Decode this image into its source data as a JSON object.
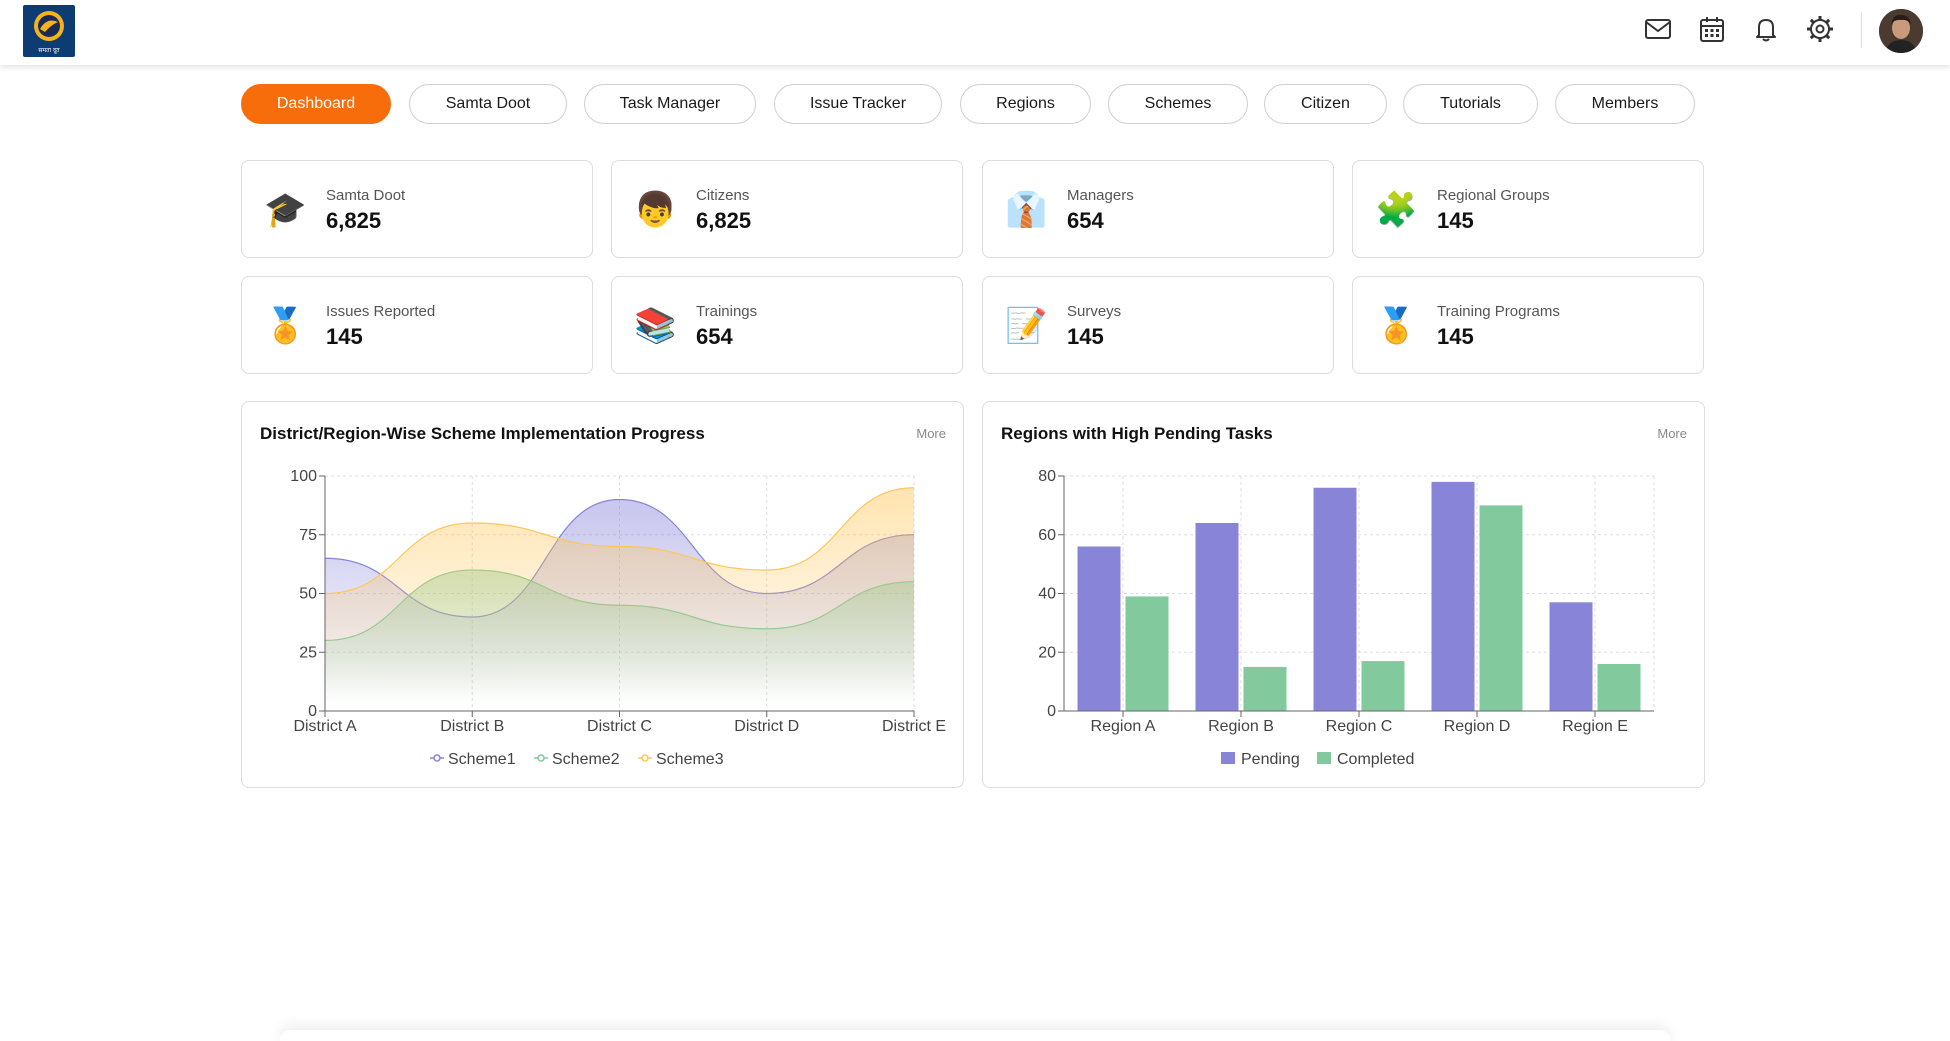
{
  "header": {
    "logo_text": "समता दूत",
    "icons": [
      "mail-icon",
      "calendar-icon",
      "bell-icon",
      "settings-icon"
    ]
  },
  "nav": {
    "tabs": [
      {
        "label": "Dashboard",
        "active": true
      },
      {
        "label": "Samta Doot",
        "active": false
      },
      {
        "label": "Task Manager",
        "active": false
      },
      {
        "label": "Issue Tracker",
        "active": false
      },
      {
        "label": "Regions",
        "active": false
      },
      {
        "label": "Schemes",
        "active": false
      },
      {
        "label": "Citizen",
        "active": false
      },
      {
        "label": "Tutorials",
        "active": false
      },
      {
        "label": "Members",
        "active": false
      }
    ],
    "active_color": "#f86d0b"
  },
  "stats": [
    {
      "icon": "graduation-cap-icon",
      "glyph": "🎓",
      "label": "Samta Doot",
      "value": "6,825"
    },
    {
      "icon": "citizen-face-icon",
      "glyph": "👦",
      "label": "Citizens",
      "value": "6,825"
    },
    {
      "icon": "manager-shirt-icon",
      "glyph": "👔",
      "label": "Managers",
      "value": "654"
    },
    {
      "icon": "puzzle-piece-icon",
      "glyph": "🧩",
      "label": "Regional Groups",
      "value": "145"
    },
    {
      "icon": "medal-icon",
      "glyph": "🏅",
      "label": "Issues Reported",
      "value": "145"
    },
    {
      "icon": "books-icon",
      "glyph": "📚",
      "label": "Trainings",
      "value": "654"
    },
    {
      "icon": "memo-icon",
      "glyph": "📝",
      "label": "Surveys",
      "value": "145"
    },
    {
      "icon": "medal-icon",
      "glyph": "🏅",
      "label": "Training Programs",
      "value": "145"
    }
  ],
  "panels": {
    "more_label": "More",
    "left_title": "District/Region-Wise Scheme Implementation Progress",
    "right_title": "Regions with High Pending Tasks"
  },
  "chart_data": [
    {
      "type": "area",
      "title": "District/Region-Wise Scheme Implementation Progress",
      "categories": [
        "District A",
        "District B",
        "District C",
        "District D",
        "District E"
      ],
      "series": [
        {
          "name": "Scheme1",
          "values": [
            65,
            40,
            90,
            50,
            75
          ],
          "color": "#8884d8"
        },
        {
          "name": "Scheme2",
          "values": [
            30,
            60,
            45,
            35,
            55
          ],
          "color": "#82ca9d"
        },
        {
          "name": "Scheme3",
          "values": [
            50,
            80,
            70,
            60,
            95
          ],
          "color": "#ffc658"
        }
      ],
      "ylim": [
        0,
        100
      ],
      "yticks": [
        0,
        25,
        50,
        75,
        100
      ],
      "grid": true,
      "legend": "bottom"
    },
    {
      "type": "bar",
      "title": "Regions with High Pending Tasks",
      "categories": [
        "Region A",
        "Region B",
        "Region C",
        "Region D",
        "Region E"
      ],
      "series": [
        {
          "name": "Pending",
          "values": [
            56,
            64,
            76,
            78,
            37
          ],
          "color": "#8884d8"
        },
        {
          "name": "Completed",
          "values": [
            39,
            15,
            17,
            70,
            16
          ],
          "color": "#82ca9d"
        }
      ],
      "ylim": [
        0,
        80
      ],
      "yticks": [
        0,
        20,
        40,
        60,
        80
      ],
      "grid": true,
      "legend": "bottom"
    }
  ]
}
